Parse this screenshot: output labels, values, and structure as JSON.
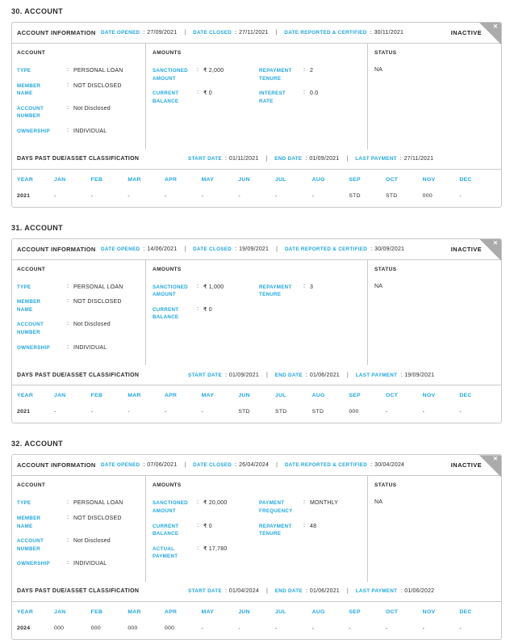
{
  "theme": {
    "accent": "#1fa7e0",
    "text_dark": "#2b2a2a",
    "border": "#c9cacb",
    "ribbon_gray": "#ababab"
  },
  "labels": {
    "account_information": "ACCOUNT INFORMATION",
    "date_opened": "DATE OPENED",
    "date_closed": "DATE CLOSED",
    "date_reported": "DATE REPORTED & CERTIFIED",
    "account": "ACCOUNT",
    "amounts": "AMOUNTS",
    "status": "STATUS",
    "dpd": "DAYS PAST DUE/ASSET CLASSIFICATION",
    "start_date": "START DATE",
    "end_date": "END DATE",
    "last_payment": "LAST PAYMENT",
    "year": "YEAR",
    "colon": ":",
    "separator": "|",
    "close_glyph": "✕"
  },
  "months": [
    "JAN",
    "FEB",
    "MAR",
    "APR",
    "MAY",
    "JUN",
    "JUL",
    "AUG",
    "SEP",
    "OCT",
    "NOV",
    "DEC"
  ],
  "accounts": [
    {
      "section_title": "30. ACCOUNT",
      "status_badge": "INACTIVE",
      "dates": {
        "opened": "27/09/2021",
        "closed": "27/11/2021",
        "reported": "30/11/2021"
      },
      "account_rows": [
        {
          "label": "TYPE",
          "value": "PERSONAL LOAN"
        },
        {
          "label": "MEMBER NAME",
          "value": "NOT DISCLOSED"
        },
        {
          "label": "ACCOUNT NUMBER",
          "value": "Not Disclosed"
        },
        {
          "label": "OWNERSHIP",
          "value": "INDIVIDUAL"
        }
      ],
      "amounts_left": [
        {
          "label": "SANCTIONED AMOUNT",
          "value": "₹ 2,000"
        },
        {
          "label": "CURRENT BALANCE",
          "value": "₹ 0"
        }
      ],
      "amounts_right": [
        {
          "label": "REPAYMENT TENURE",
          "value": "2"
        },
        {
          "label": "INTEREST RATE",
          "value": "0.0"
        }
      ],
      "status_value": "NA",
      "dpd": {
        "start_date": "01/11/2021",
        "end_date": "01/09/2021",
        "last_payment": "27/11/2021",
        "year": "2021",
        "values": [
          "-",
          "-",
          "-",
          "-",
          "-",
          "-",
          "-",
          "-",
          "STD",
          "STD",
          "000",
          "-"
        ]
      }
    },
    {
      "section_title": "31. ACCOUNT",
      "status_badge": "INACTIVE",
      "dates": {
        "opened": "14/06/2021",
        "closed": "19/09/2021",
        "reported": "30/09/2021"
      },
      "account_rows": [
        {
          "label": "TYPE",
          "value": "PERSONAL LOAN"
        },
        {
          "label": "MEMBER NAME",
          "value": "NOT DISCLOSED"
        },
        {
          "label": "ACCOUNT NUMBER",
          "value": "Not Disclosed"
        },
        {
          "label": "OWNERSHIP",
          "value": "INDIVIDUAL"
        }
      ],
      "amounts_left": [
        {
          "label": "SANCTIONED AMOUNT",
          "value": "₹ 1,000"
        },
        {
          "label": "CURRENT BALANCE",
          "value": "₹ 0"
        }
      ],
      "amounts_right": [
        {
          "label": "REPAYMENT TENURE",
          "value": "3"
        }
      ],
      "status_value": "NA",
      "dpd": {
        "start_date": "01/09/2021",
        "end_date": "01/06/2021",
        "last_payment": "19/09/2021",
        "year": "2021",
        "values": [
          "-",
          "-",
          "-",
          "-",
          "-",
          "STD",
          "STD",
          "STD",
          "000",
          "-",
          "-",
          "-"
        ]
      }
    },
    {
      "section_title": "32. ACCOUNT",
      "status_badge": "INACTIVE",
      "dates": {
        "opened": "07/06/2021",
        "closed": "26/04/2024",
        "reported": "30/04/2024"
      },
      "account_rows": [
        {
          "label": "TYPE",
          "value": "PERSONAL LOAN"
        },
        {
          "label": "MEMBER NAME",
          "value": "NOT DISCLOSED"
        },
        {
          "label": "ACCOUNT NUMBER",
          "value": "Not Disclosed"
        },
        {
          "label": "OWNERSHIP",
          "value": "INDIVIDUAL"
        }
      ],
      "amounts_left": [
        {
          "label": "SANCTIONED AMOUNT",
          "value": "₹ 20,000"
        },
        {
          "label": "CURRENT BALANCE",
          "value": "₹ 0"
        },
        {
          "label": "ACTUAL PAYMENT",
          "value": "₹ 17,780"
        }
      ],
      "amounts_right": [
        {
          "label": "PAYMENT FREQUENCY",
          "value": "MONTHLY"
        },
        {
          "label": "REPAYMENT TENURE",
          "value": "48"
        }
      ],
      "status_value": "NA",
      "dpd": {
        "start_date": "01/04/2024",
        "end_date": "01/06/2021",
        "last_payment": "01/06/2022",
        "year": "2024",
        "values": [
          "000",
          "000",
          "000",
          "000",
          "-",
          "-",
          "-",
          "-",
          "-",
          "-",
          "-",
          "-"
        ]
      }
    }
  ]
}
